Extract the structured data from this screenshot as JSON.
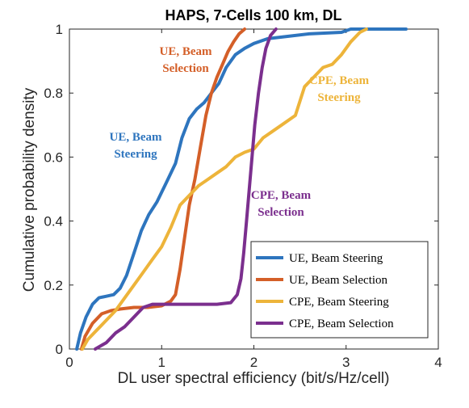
{
  "chart_data": {
    "type": "line",
    "title": "HAPS, 7-Cells 100 km, DL",
    "xlabel": "DL user spectral efficiency (bit/s/Hz/cell)",
    "ylabel": "Cumulative probability density",
    "xlim": [
      0,
      4
    ],
    "ylim": [
      0,
      1
    ],
    "xticks": [
      "0",
      "1",
      "2",
      "3",
      "4"
    ],
    "yticks": [
      "0",
      "0.2",
      "0.4",
      "0.6",
      "0.8",
      "1"
    ],
    "grid": false,
    "legend_position": "lower-right",
    "series": [
      {
        "name": "UE, Beam Steering",
        "color": "#2E75BE",
        "points": [
          [
            0.08,
            0.0
          ],
          [
            0.12,
            0.05
          ],
          [
            0.18,
            0.1
          ],
          [
            0.25,
            0.14
          ],
          [
            0.32,
            0.16
          ],
          [
            0.4,
            0.165
          ],
          [
            0.48,
            0.17
          ],
          [
            0.55,
            0.19
          ],
          [
            0.62,
            0.23
          ],
          [
            0.7,
            0.3
          ],
          [
            0.78,
            0.37
          ],
          [
            0.86,
            0.42
          ],
          [
            0.95,
            0.46
          ],
          [
            1.05,
            0.52
          ],
          [
            1.15,
            0.58
          ],
          [
            1.22,
            0.66
          ],
          [
            1.3,
            0.72
          ],
          [
            1.38,
            0.75
          ],
          [
            1.46,
            0.77
          ],
          [
            1.54,
            0.8
          ],
          [
            1.62,
            0.83
          ],
          [
            1.7,
            0.88
          ],
          [
            1.8,
            0.92
          ],
          [
            1.9,
            0.94
          ],
          [
            2.0,
            0.955
          ],
          [
            2.15,
            0.97
          ],
          [
            2.3,
            0.975
          ],
          [
            2.6,
            0.985
          ],
          [
            2.95,
            0.99
          ],
          [
            3.05,
            1.0
          ],
          [
            3.65,
            1.0
          ]
        ]
      },
      {
        "name": "UE, Beam Selection",
        "color": "#D45F28",
        "points": [
          [
            0.13,
            0.0
          ],
          [
            0.17,
            0.04
          ],
          [
            0.25,
            0.08
          ],
          [
            0.35,
            0.11
          ],
          [
            0.45,
            0.12
          ],
          [
            0.55,
            0.125
          ],
          [
            0.7,
            0.13
          ],
          [
            0.85,
            0.13
          ],
          [
            1.0,
            0.135
          ],
          [
            1.1,
            0.15
          ],
          [
            1.15,
            0.17
          ],
          [
            1.2,
            0.25
          ],
          [
            1.25,
            0.35
          ],
          [
            1.3,
            0.45
          ],
          [
            1.36,
            0.53
          ],
          [
            1.42,
            0.63
          ],
          [
            1.48,
            0.73
          ],
          [
            1.54,
            0.8
          ],
          [
            1.6,
            0.85
          ],
          [
            1.66,
            0.89
          ],
          [
            1.72,
            0.93
          ],
          [
            1.78,
            0.96
          ],
          [
            1.84,
            0.985
          ],
          [
            1.9,
            1.0
          ]
        ]
      },
      {
        "name": "CPE, Beam Steering",
        "color": "#EDB43A",
        "points": [
          [
            0.14,
            0.0
          ],
          [
            0.2,
            0.03
          ],
          [
            0.3,
            0.06
          ],
          [
            0.4,
            0.09
          ],
          [
            0.5,
            0.12
          ],
          [
            0.6,
            0.16
          ],
          [
            0.7,
            0.2
          ],
          [
            0.8,
            0.24
          ],
          [
            0.9,
            0.28
          ],
          [
            1.0,
            0.32
          ],
          [
            1.1,
            0.38
          ],
          [
            1.2,
            0.45
          ],
          [
            1.3,
            0.48
          ],
          [
            1.4,
            0.51
          ],
          [
            1.5,
            0.53
          ],
          [
            1.6,
            0.55
          ],
          [
            1.7,
            0.57
          ],
          [
            1.8,
            0.6
          ],
          [
            1.9,
            0.615
          ],
          [
            2.0,
            0.625
          ],
          [
            2.1,
            0.66
          ],
          [
            2.2,
            0.68
          ],
          [
            2.3,
            0.7
          ],
          [
            2.45,
            0.73
          ],
          [
            2.55,
            0.82
          ],
          [
            2.65,
            0.85
          ],
          [
            2.75,
            0.88
          ],
          [
            2.85,
            0.89
          ],
          [
            2.95,
            0.92
          ],
          [
            3.05,
            0.96
          ],
          [
            3.15,
            0.99
          ],
          [
            3.22,
            1.0
          ]
        ]
      },
      {
        "name": "CPE, Beam Selection",
        "color": "#7B2F8E",
        "points": [
          [
            0.28,
            0.0
          ],
          [
            0.4,
            0.02
          ],
          [
            0.5,
            0.05
          ],
          [
            0.6,
            0.07
          ],
          [
            0.7,
            0.1
          ],
          [
            0.8,
            0.13
          ],
          [
            0.9,
            0.14
          ],
          [
            1.0,
            0.14
          ],
          [
            1.2,
            0.14
          ],
          [
            1.4,
            0.14
          ],
          [
            1.6,
            0.14
          ],
          [
            1.75,
            0.145
          ],
          [
            1.82,
            0.17
          ],
          [
            1.86,
            0.22
          ],
          [
            1.89,
            0.3
          ],
          [
            1.92,
            0.4
          ],
          [
            1.95,
            0.5
          ],
          [
            1.98,
            0.6
          ],
          [
            2.01,
            0.7
          ],
          [
            2.05,
            0.8
          ],
          [
            2.09,
            0.88
          ],
          [
            2.13,
            0.94
          ],
          [
            2.18,
            0.98
          ],
          [
            2.24,
            1.0
          ]
        ]
      }
    ],
    "annotations": [
      {
        "lines": [
          "UE, Beam",
          "Selection"
        ],
        "color": "#D45F28"
      },
      {
        "lines": [
          "CPE, Beam",
          "Steering"
        ],
        "color": "#EDB43A"
      },
      {
        "lines": [
          "UE, Beam",
          "Steering"
        ],
        "color": "#2E75BE"
      },
      {
        "lines": [
          "CPE, Beam",
          "Selection"
        ],
        "color": "#7B2F8E"
      }
    ]
  }
}
